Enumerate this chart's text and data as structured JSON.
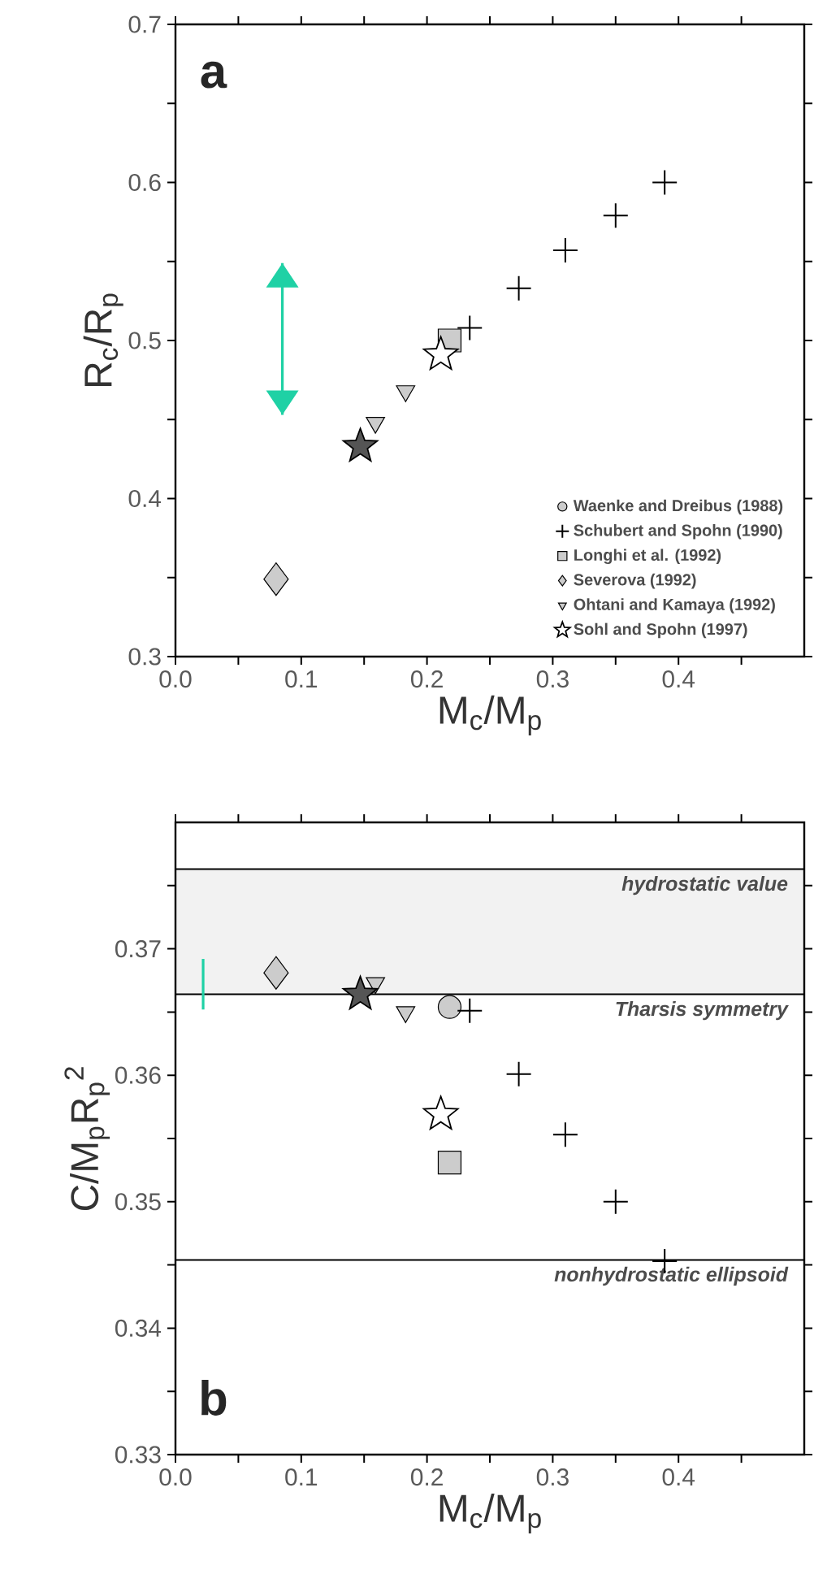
{
  "chart_data": [
    {
      "type": "scatter",
      "xlabel": "M$_{c}$/M$_{p}$",
      "ylabel": "R$_{c}$/R$_{p}$",
      "xlim": [
        0,
        0.5
      ],
      "ylim": [
        0.3,
        0.7
      ],
      "xticks": [
        {
          "value": 0,
          "label": "0.0"
        },
        {
          "value": 0.05,
          "label": null
        },
        0.1,
        {
          "value": 0.15,
          "label": null
        },
        0.2,
        {
          "value": 0.25,
          "label": null
        },
        0.3,
        {
          "value": 0.35,
          "label": null
        },
        0.4,
        {
          "value": 0.45,
          "label": null
        }
      ],
      "yticks": [
        0.3,
        {
          "value": 0.35,
          "label": null
        },
        0.4,
        {
          "value": 0.45,
          "label": null
        },
        0.5,
        {
          "value": 0.55,
          "label": null
        },
        0.6,
        {
          "value": 0.65,
          "label": null
        },
        0.7
      ],
      "legend": "bottom right",
      "annotations": [
        "a"
      ],
      "series": [
        {
          "name": "Waenke and Dreibus (1988)",
          "marker": "circle",
          "color": "#cccccc"
        },
        {
          "name": "Schubert and Spohn (1990)",
          "marker": "cross",
          "color": "#000000",
          "x": [
            0.234,
            0.273,
            0.31,
            0.35,
            0.389
          ],
          "values": [
            0.508,
            0.533,
            0.557,
            0.579,
            0.6
          ]
        },
        {
          "name": "Longhi et al. (1992)",
          "marker": "square",
          "color": "#cccccc",
          "x": [
            0.218
          ],
          "values": [
            0.5
          ]
        },
        {
          "name": "Severova (1992)",
          "marker": "diamond",
          "color": "#cccccc",
          "x": [
            0.08
          ],
          "values": [
            0.349
          ]
        },
        {
          "name": "Ohtani and Kamaya (1992)",
          "marker": "triangle",
          "color": "#cccccc",
          "x": [
            0.159,
            0.183
          ],
          "values": [
            0.448,
            0.468
          ]
        },
        {
          "name": "Sohl and Spohn (1997)",
          "marker": "star",
          "color": "#ffffff",
          "colors": [
            "#ffffff",
            "#555555"
          ],
          "x": [
            0.211,
            0.147
          ],
          "values": [
            0.491,
            0.433
          ]
        },
        {
          "type": "line",
          "marker": "none",
          "color": "#1fd1a5",
          "x": [
            0.085,
            0.085
          ],
          "values": [
            0.453,
            0.549
          ]
        }
      ]
    },
    {
      "type": "scatter",
      "xlabel": "M$_{c}$/M$_{p}$",
      "ylabel": "C/M$_{p}$R$_{p}$$^{2}$",
      "xlim": [
        0,
        0.5
      ],
      "ylim": [
        0.33,
        0.38
      ],
      "xticks": [
        {
          "value": 0,
          "label": "0.0"
        },
        {
          "value": 0.05,
          "label": null
        },
        0.1,
        {
          "value": 0.15,
          "label": null
        },
        0.2,
        {
          "value": 0.25,
          "label": null
        },
        0.3,
        {
          "value": 0.35,
          "label": null
        },
        0.4,
        {
          "value": 0.45,
          "label": null
        }
      ],
      "yticks": [
        0.33,
        {
          "value": 0.335,
          "label": null
        },
        0.34,
        {
          "value": 0.345,
          "label": null
        },
        0.35,
        {
          "value": 0.355,
          "label": null
        },
        0.36,
        {
          "value": 0.365,
          "label": null
        },
        0.37,
        {
          "value": 0.375,
          "label": null
        }
      ],
      "annotations": [
        "b"
      ],
      "bands": [
        {
          "axis": "y",
          "from": 0.3664,
          "to": 0.3763,
          "color": "#f2f2f2"
        }
      ],
      "ref_lines": [
        {
          "axis": "y",
          "value": 0.3763,
          "label": "hydrostatic value"
        },
        {
          "axis": "y",
          "value": 0.3664,
          "label": "Tharsis symmetry"
        },
        {
          "axis": "y",
          "value": 0.3454,
          "label": "nonhydrostatic ellipsoid"
        }
      ],
      "series": [
        {
          "marker": "circle",
          "color": "#cccccc",
          "x": [
            0.218
          ],
          "values": [
            0.3654
          ]
        },
        {
          "marker": "cross",
          "color": "#000000",
          "x": [
            0.234,
            0.273,
            0.31,
            0.35,
            0.389
          ],
          "values": [
            0.3651,
            0.3601,
            0.3553,
            0.35,
            0.3453
          ]
        },
        {
          "marker": "square",
          "color": "#cccccc",
          "x": [
            0.218
          ],
          "values": [
            0.3531
          ]
        },
        {
          "marker": "diamond",
          "color": "#cccccc",
          "x": [
            0.08
          ],
          "values": [
            0.3681
          ]
        },
        {
          "marker": "triangle",
          "color": "#cccccc",
          "x": [
            0.159,
            0.183
          ],
          "values": [
            0.3673,
            0.365
          ]
        },
        {
          "marker": "star",
          "color": "#ffffff",
          "colors": [
            "#ffffff",
            "#555555"
          ],
          "x": [
            0.211,
            0.147
          ],
          "values": [
            0.3569,
            0.3664
          ]
        },
        {
          "type": "line",
          "marker": "none",
          "color": "#1fd1a5",
          "x": [
            0.022,
            0.022
          ],
          "values": [
            0.3652,
            0.3692
          ]
        }
      ]
    }
  ]
}
